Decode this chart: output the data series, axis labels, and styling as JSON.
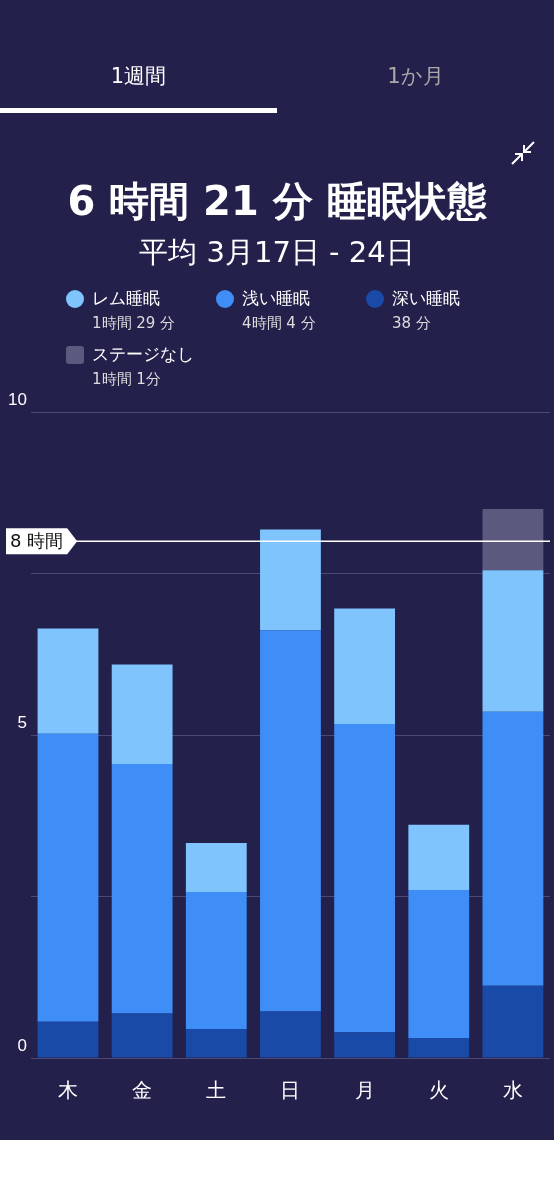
{
  "chart_data": {
    "type": "bar",
    "stacked": true,
    "title": "6 時間 21 分 睡眠状態",
    "subtitle": "平均 3月17日 - 24日",
    "categories": [
      "木",
      "金",
      "土",
      "日",
      "月",
      "火",
      "水"
    ],
    "series": [
      {
        "name": "深い睡眠",
        "color": "#1a4aa8",
        "values": [
          0.56,
          0.69,
          0.45,
          0.72,
          0.4,
          0.31,
          1.12
        ]
      },
      {
        "name": "浅い睡眠",
        "color": "#3f8ef7",
        "values": [
          4.46,
          3.86,
          2.12,
          5.9,
          4.77,
          2.29,
          4.24
        ]
      },
      {
        "name": "レム睡眠",
        "color": "#80c4fd",
        "values": [
          1.63,
          1.54,
          0.76,
          1.56,
          1.79,
          1.01,
          2.19
        ]
      },
      {
        "name": "ステージなし",
        "color": "#5b5a7e",
        "values": [
          null,
          null,
          null,
          null,
          null,
          null,
          0.95
        ]
      }
    ],
    "ylim": [
      0,
      10
    ],
    "yticks": [
      0,
      {
        "value": 2.5,
        "label": null
      },
      5,
      {
        "value": 7.5,
        "label": null
      },
      10
    ],
    "grid": "y",
    "legend": "top left",
    "ref_lines": [
      {
        "axis": "y",
        "value": 8,
        "label": "8 時間",
        "color": "#ffffff"
      }
    ],
    "annotations": [
      "1週間",
      "1か月",
      "1時間 29 分",
      "4時間 4 分",
      "38 分",
      "1時間 1分"
    ]
  }
}
